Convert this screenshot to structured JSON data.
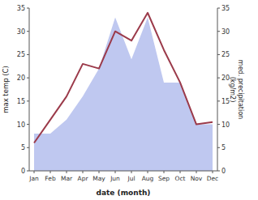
{
  "chart_data": {
    "type": "line",
    "categories": [
      "Jan",
      "Feb",
      "Mar",
      "Apr",
      "May",
      "Jun",
      "Jul",
      "Aug",
      "Sep",
      "Oct",
      "Nov",
      "Dec"
    ],
    "xlabel": "date (month)",
    "ylabel": "max temp (C)",
    "y2label": "med. precipitation\n(kg/m2)",
    "ylim": [
      0,
      35
    ],
    "yticks": [
      0,
      5,
      10,
      15,
      20,
      25,
      30,
      35
    ],
    "y2lim": [
      0,
      35
    ],
    "y2ticks": [
      0,
      5,
      10,
      15,
      20,
      25,
      30,
      35
    ],
    "series": [
      {
        "type": "area",
        "axis": "y2",
        "color": "#bfc8f0",
        "values": [
          8,
          8,
          11,
          16,
          22,
          33,
          24,
          33,
          19,
          19,
          10,
          10
        ]
      },
      {
        "type": "line",
        "color": "#9b3a4a",
        "values": [
          6,
          11,
          16,
          23,
          22,
          30,
          28,
          34,
          26,
          19,
          10,
          10.5
        ]
      }
    ]
  }
}
